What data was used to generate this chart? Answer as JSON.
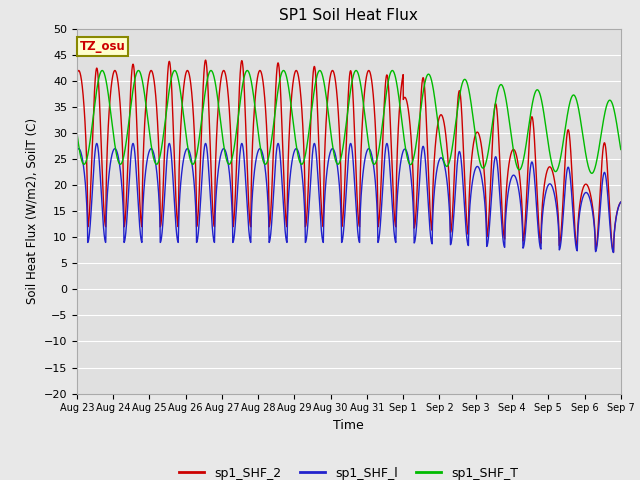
{
  "title": "SP1 Soil Heat Flux",
  "xlabel": "Time",
  "ylabel": "Soil Heat Flux (W/m2), SoilT (C)",
  "ylim": [
    -20,
    50
  ],
  "yticks": [
    -20,
    -15,
    -10,
    -5,
    0,
    5,
    10,
    15,
    20,
    25,
    30,
    35,
    40,
    45,
    50
  ],
  "x_tick_labels": [
    "Aug 23",
    "Aug 24",
    "Aug 25",
    "Aug 26",
    "Aug 27",
    "Aug 28",
    "Aug 29",
    "Aug 30",
    "Aug 31",
    "Sep 1",
    "Sep 2",
    "Sep 3",
    "Sep 4",
    "Sep 5",
    "Sep 6",
    "Sep 7"
  ],
  "tz_label": "TZ_osu",
  "legend_entries": [
    "sp1_SHF_2",
    "sp1_SHF_l",
    "sp1_SHF_T"
  ],
  "line_colors": [
    "#cc0000",
    "#2222cc",
    "#00bb00"
  ],
  "fig_bg_color": "#e8e8e8",
  "plot_bg_color": "#e0e0e0",
  "grid_color": "#ffffff"
}
